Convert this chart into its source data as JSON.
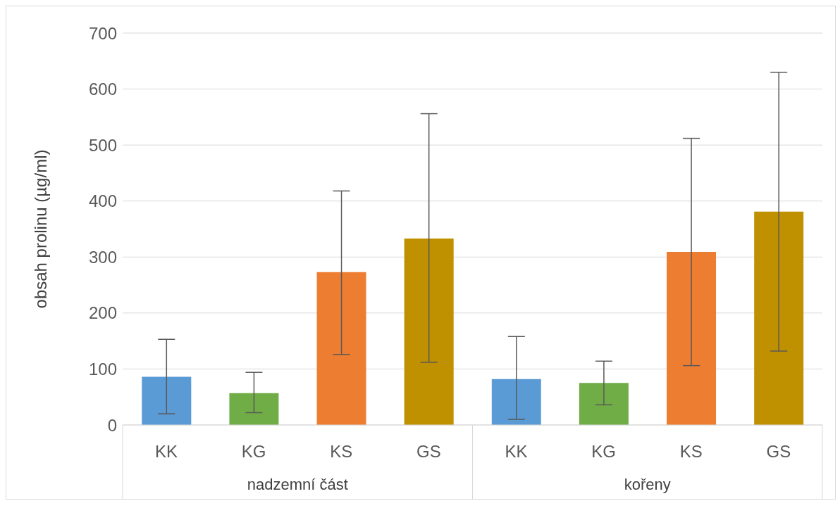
{
  "chart_data": {
    "type": "bar",
    "ylabel": "obsah prolinu (µg/ml)",
    "categories": [
      "KK",
      "KG",
      "KS",
      "GS",
      "KK",
      "KG",
      "KS",
      "GS"
    ],
    "values": [
      86,
      57,
      273,
      333,
      82,
      75,
      309,
      381
    ],
    "colors": [
      "#5b9bd5",
      "#70ad47",
      "#ed7d31",
      "#bf9000",
      "#5b9bd5",
      "#70ad47",
      "#ed7d31",
      "#bf9000"
    ],
    "errors": [
      [
        20,
        153
      ],
      [
        22,
        94
      ],
      [
        126,
        418
      ],
      [
        112,
        556
      ],
      [
        10,
        158
      ],
      [
        36,
        114
      ],
      [
        106,
        512
      ],
      [
        132,
        630
      ]
    ],
    "annotations": [
      "nadzemní část",
      "kořeny"
    ],
    "ylim": [
      0,
      700
    ],
    "yticks": [
      0,
      100,
      200,
      300,
      400,
      500,
      600,
      700
    ],
    "grid": "y"
  }
}
